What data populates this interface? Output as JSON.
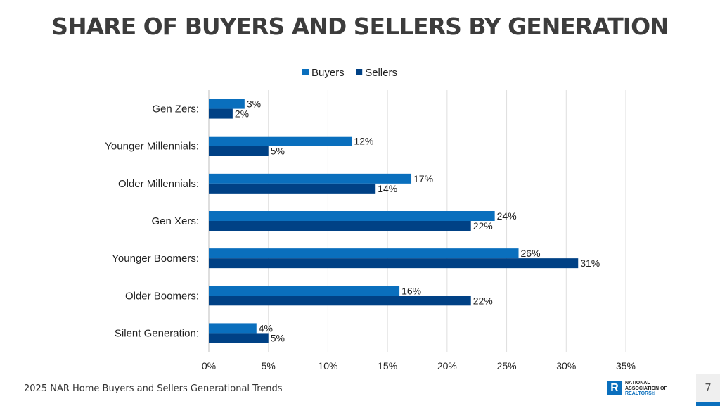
{
  "chart_data": {
    "type": "bar",
    "orientation": "horizontal",
    "title": "SHARE OF BUYERS AND SELLERS BY GENERATION",
    "categories": [
      "Gen Zers:",
      "Younger Millennials:",
      "Older Millennials:",
      "Gen Xers:",
      "Younger Boomers:",
      "Older Boomers:",
      "Silent Generation:"
    ],
    "series": [
      {
        "name": "Buyers",
        "color": "#0a6fbd",
        "values": [
          3,
          12,
          17,
          24,
          26,
          16,
          4
        ]
      },
      {
        "name": "Sellers",
        "color": "#004185",
        "values": [
          2,
          5,
          14,
          22,
          31,
          22,
          5
        ]
      }
    ],
    "xlim": [
      0,
      35
    ],
    "xticks": [
      "0%",
      "5%",
      "10%",
      "15%",
      "20%",
      "25%",
      "30%",
      "35%"
    ],
    "grid": true,
    "legend": "top",
    "data_label_suffix": "%"
  },
  "footer": {
    "source": "2025 NAR Home Buyers and Sellers Generational Trends"
  },
  "logo": {
    "line1": "NATIONAL",
    "line2": "ASSOCIATION OF",
    "line3": "REALTORS®",
    "mark": "R"
  },
  "page": {
    "number": "7"
  }
}
